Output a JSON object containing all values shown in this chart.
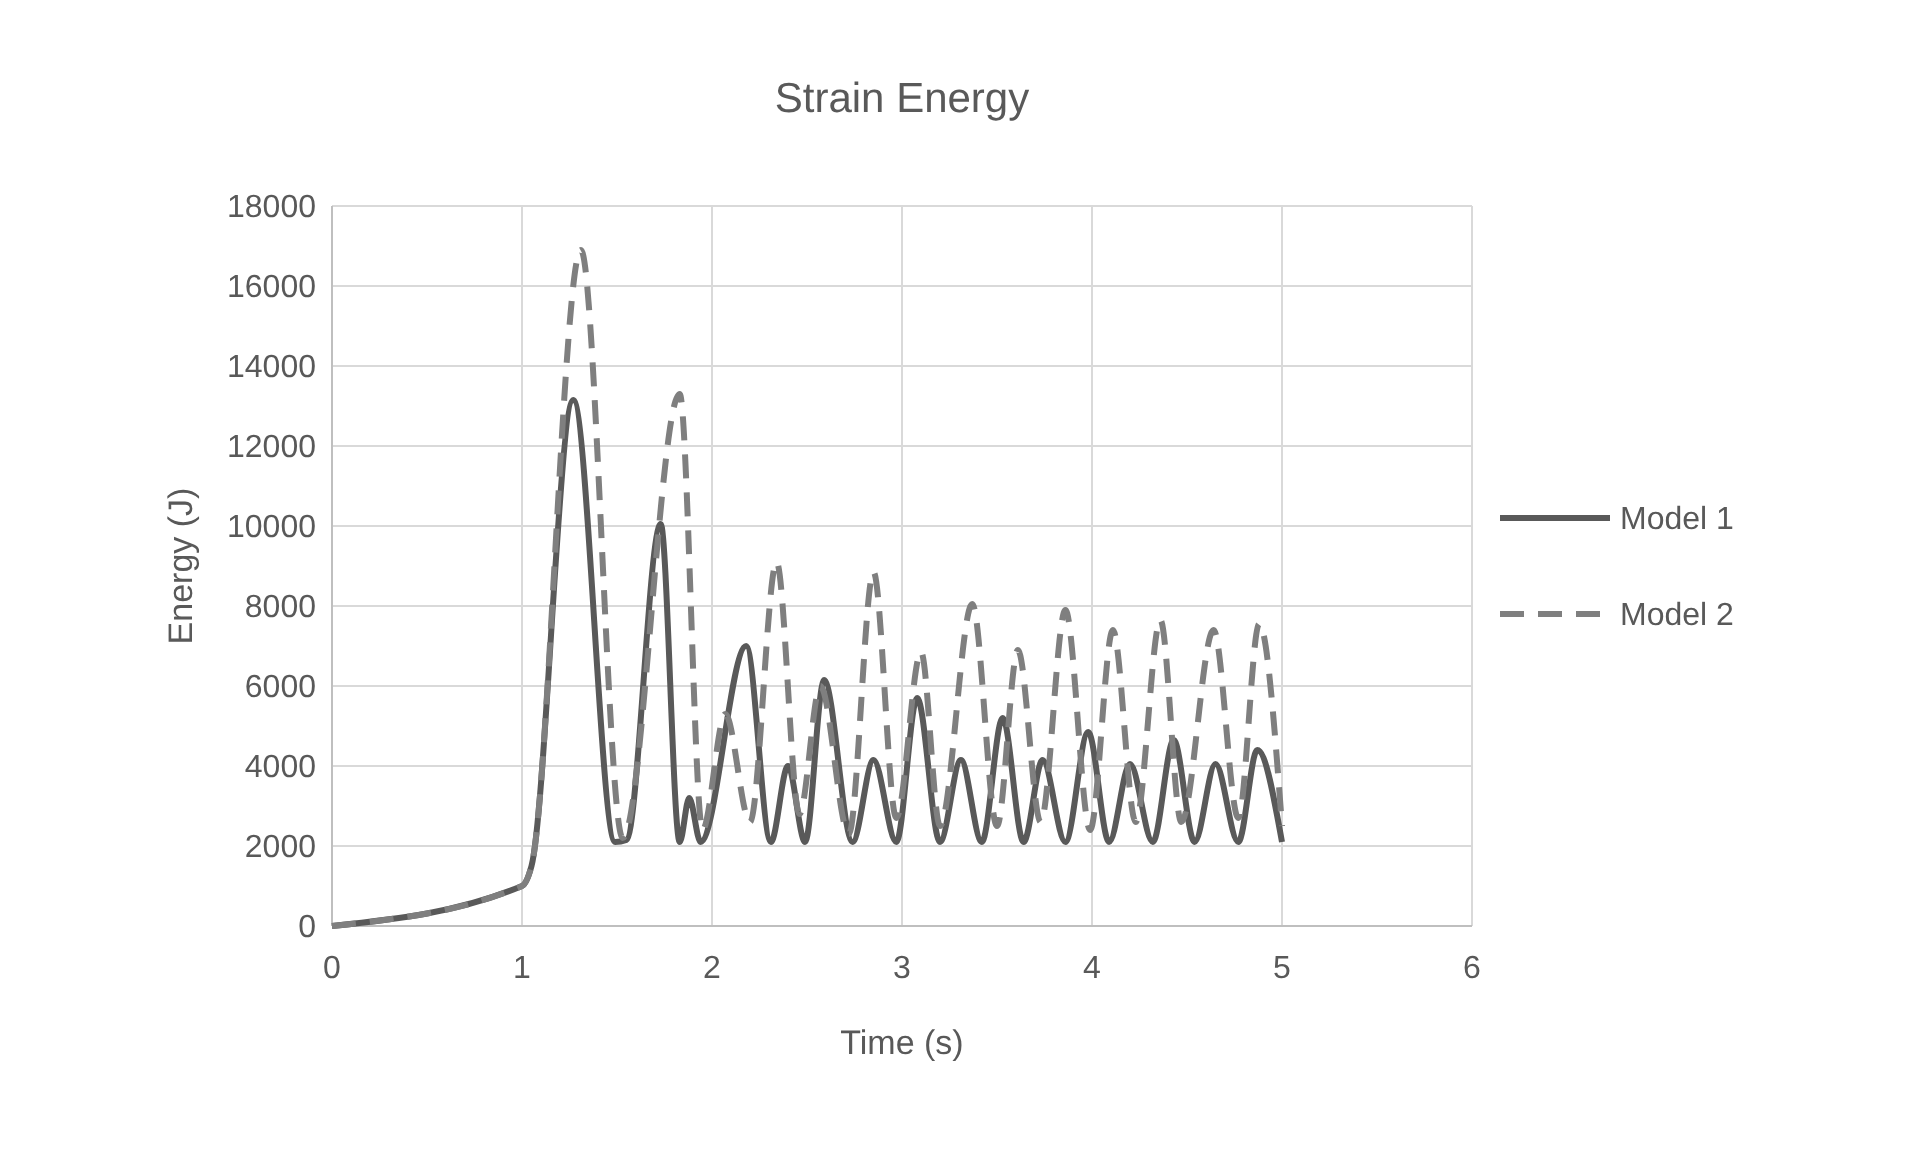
{
  "chart_data": {
    "type": "line",
    "title": "Strain Energy",
    "xlabel": "Time (s)",
    "ylabel": "Energy (J)",
    "xlim": [
      0,
      6
    ],
    "xticks": [
      0,
      1,
      2,
      3,
      4,
      5,
      6
    ],
    "ylim": [
      0,
      18000
    ],
    "yticks": [
      0,
      2000,
      4000,
      6000,
      8000,
      10000,
      12000,
      14000,
      16000,
      18000
    ],
    "grid": true,
    "legend": "right",
    "marker": "none",
    "series": [
      {
        "name": "Model 1",
        "color": "#595959",
        "line_style": "solid",
        "x": [
          0,
          1,
          1.05,
          1.27,
          1.49,
          1.55,
          1.73,
          1.83,
          1.88,
          1.94,
          2.18,
          2.31,
          2.4,
          2.49,
          2.59,
          2.74,
          2.85,
          2.97,
          3.08,
          3.2,
          3.31,
          3.42,
          3.53,
          3.64,
          3.74,
          3.86,
          3.98,
          4.09,
          4.2,
          4.32,
          4.43,
          4.54,
          4.65,
          4.77,
          4.87,
          5.0
        ],
        "values": [
          0,
          1000,
          1500,
          13150,
          2100,
          2150,
          10050,
          2100,
          3200,
          2100,
          7000,
          2100,
          4000,
          2100,
          6150,
          2100,
          4150,
          2100,
          5700,
          2100,
          4150,
          2100,
          5200,
          2100,
          4150,
          2100,
          4850,
          2100,
          4050,
          2100,
          4650,
          2100,
          4050,
          2100,
          4400,
          2100
        ]
      },
      {
        "name": "Model 2",
        "color": "#7f7f7f",
        "line_style": "dashed",
        "x": [
          0,
          1,
          1.05,
          1.31,
          1.53,
          1.83,
          1.95,
          2.07,
          2.2,
          2.34,
          2.46,
          2.57,
          2.72,
          2.85,
          2.97,
          3.1,
          3.2,
          3.37,
          3.5,
          3.61,
          3.73,
          3.86,
          3.99,
          4.11,
          4.23,
          4.36,
          4.47,
          4.64,
          4.77,
          4.88,
          5.0
        ],
        "values": [
          0,
          1000,
          1500,
          16900,
          2200,
          13300,
          2400,
          5300,
          2600,
          9100,
          2800,
          6000,
          2300,
          8850,
          2700,
          6850,
          2500,
          8050,
          2500,
          6900,
          2600,
          7900,
          2400,
          7400,
          2600,
          7650,
          2600,
          7400,
          2700,
          7550,
          2500
        ]
      }
    ]
  }
}
